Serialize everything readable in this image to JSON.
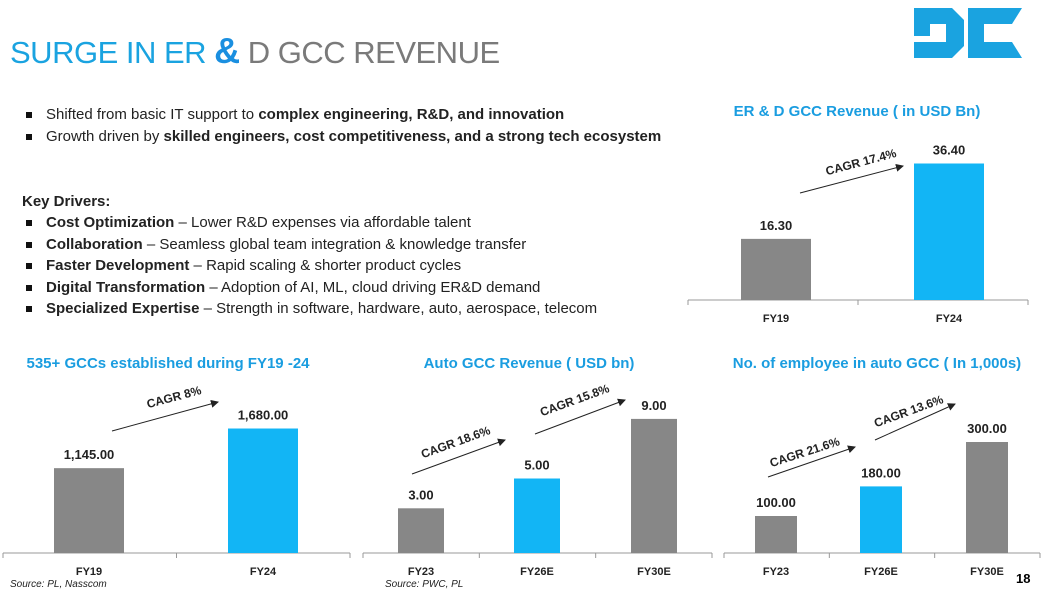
{
  "title": {
    "part1": "SURGE IN ER ",
    "amp": "&",
    "part2": " D GCC REVENUE"
  },
  "logo_text": "DC",
  "bullets": [
    {
      "plain": "Shifted from basic IT support to ",
      "bold": "complex engineering, R&D, and innovation"
    },
    {
      "plain": "Growth driven by ",
      "bold": "skilled engineers, cost competitiveness, and a strong tech ecosystem"
    }
  ],
  "key_drivers_heading": "Key Drivers:",
  "key_drivers": [
    {
      "bold": "Cost Optimization",
      "plain": " – Lower R&D expenses via affordable talent"
    },
    {
      "bold": "Collaboration",
      "plain": " – Seamless global team integration & knowledge transfer"
    },
    {
      "bold": "Faster Development",
      "plain": " – Rapid scaling & shorter product cycles"
    },
    {
      "bold": "Digital Transformation",
      "plain": " – Adoption of AI, ML, cloud driving ER&D demand"
    },
    {
      "bold": "Specialized Expertise",
      "plain": " – Strength in software, hardware, auto, aerospace, telecom"
    }
  ],
  "colors": {
    "gray": "#878787",
    "blue": "#12b5f5",
    "title_blue": "#1aa3e0",
    "heading_blue": "#1a9de0"
  },
  "chart_data": [
    {
      "type": "bar",
      "title": "ER & D GCC Revenue ( in USD Bn)",
      "categories": [
        "FY19",
        "FY24"
      ],
      "values": [
        16.3,
        36.4
      ],
      "labels": [
        "16.30",
        "36.40"
      ],
      "bar_colors": [
        "gray",
        "blue"
      ],
      "annotations": [
        "CAGR 17.4%"
      ]
    },
    {
      "type": "bar",
      "title": "535+ GCCs established during FY19 -24",
      "categories": [
        "FY19",
        "FY24"
      ],
      "values": [
        1145,
        1680
      ],
      "labels": [
        "1,145.00",
        "1,680.00"
      ],
      "bar_colors": [
        "gray",
        "blue"
      ],
      "annotations": [
        "CAGR 8%"
      ]
    },
    {
      "type": "bar",
      "title": "Auto GCC Revenue ( USD bn)",
      "categories": [
        "FY23",
        "FY26E",
        "FY30E"
      ],
      "values": [
        3,
        5,
        9
      ],
      "labels": [
        "3.00",
        "5.00",
        "9.00"
      ],
      "bar_colors": [
        "gray",
        "blue",
        "gray"
      ],
      "annotations": [
        "CAGR 18.6%",
        "CAGR 15.8%"
      ]
    },
    {
      "type": "bar",
      "title": "No. of employee in auto GCC ( In 1,000s)",
      "categories": [
        "FY23",
        "FY26E",
        "FY30E"
      ],
      "values": [
        100,
        180,
        300
      ],
      "labels": [
        "100.00",
        "180.00",
        "300.00"
      ],
      "bar_colors": [
        "gray",
        "blue",
        "gray"
      ],
      "annotations": [
        "CAGR 21.6%",
        "CAGR 13.6%"
      ]
    }
  ],
  "sources": [
    "Source: PL, Nasscom",
    "Source: PWC, PL"
  ],
  "page_number": "18"
}
